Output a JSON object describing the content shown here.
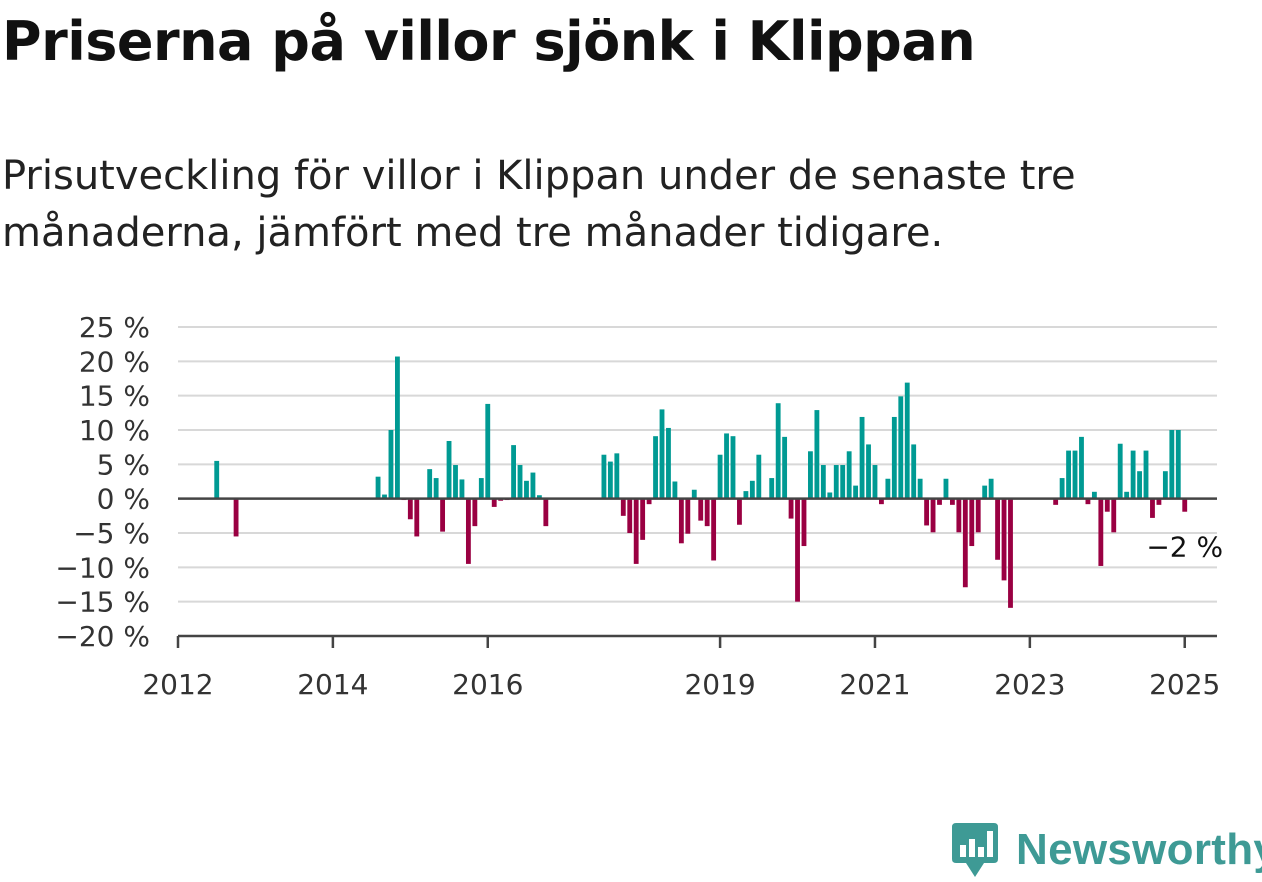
{
  "page": {
    "title": "Priserna på villor sjönk i Klippan",
    "subtitle": "Prisutveckling för villor i Klippan under de senaste tre månaderna, jämfört med tre månader tidigare.",
    "brand": "Newsworthy"
  },
  "colors": {
    "positive": "#009a93",
    "negative": "#9a0042",
    "grid": "#d8d8d8",
    "axis": "#444444",
    "brand": "#3e9a95"
  },
  "chart_data": {
    "type": "bar",
    "title": "Priserna på villor sjönk i Klippan",
    "subtitle": "Prisutveckling för villor i Klippan under de senaste tre månaderna, jämfört med tre månader tidigare.",
    "xlabel": "",
    "ylabel": "",
    "ylim": [
      -20,
      25
    ],
    "yticks": [
      25,
      20,
      15,
      10,
      5,
      0,
      -5,
      -10,
      -15,
      -20
    ],
    "ytick_labels": [
      "25 %",
      "20 %",
      "15 %",
      "10 %",
      "5 %",
      "0 %",
      "−5 %",
      "−10 %",
      "−15 %",
      "−20 %"
    ],
    "xlim": [
      "2012-01",
      "2025-06"
    ],
    "xticks": [
      "2012-01",
      "2014-01",
      "2016-01",
      "2019-01",
      "2021-01",
      "2023-01",
      "2025-01"
    ],
    "xtick_labels": [
      "2012",
      "2014",
      "2016",
      "2019",
      "2021",
      "2023",
      "2025"
    ],
    "grid": true,
    "annotation": {
      "x": "2025-01",
      "value": -2,
      "label": "−2 %"
    },
    "series": [
      {
        "x": [
          "2012-07",
          "2012-10",
          "2014-08",
          "2014-09",
          "2014-10",
          "2014-11",
          "2014-12",
          "2015-01",
          "2015-02",
          "2015-03",
          "2015-04",
          "2015-05",
          "2015-06",
          "2015-07",
          "2015-08",
          "2015-09",
          "2015-10",
          "2015-11",
          "2015-12",
          "2016-01",
          "2016-02",
          "2016-03",
          "2016-04",
          "2016-05",
          "2016-06",
          "2016-07",
          "2016-08",
          "2016-09",
          "2016-10",
          "2017-07",
          "2017-08",
          "2017-09",
          "2017-10",
          "2017-11",
          "2017-12",
          "2018-01",
          "2018-02",
          "2018-03",
          "2018-04",
          "2018-05",
          "2018-06",
          "2018-07",
          "2018-08",
          "2018-09",
          "2018-10",
          "2018-11",
          "2018-12",
          "2019-01",
          "2019-02",
          "2019-03",
          "2019-04",
          "2019-05",
          "2019-06",
          "2019-07",
          "2019-08",
          "2019-09",
          "2019-10",
          "2019-11",
          "2019-12",
          "2020-01",
          "2020-02",
          "2020-03",
          "2020-04",
          "2020-05",
          "2020-06",
          "2020-07",
          "2020-08",
          "2020-09",
          "2020-10",
          "2020-11",
          "2020-12",
          "2021-01",
          "2021-02",
          "2021-03",
          "2021-04",
          "2021-05",
          "2021-06",
          "2021-07",
          "2021-08",
          "2021-09",
          "2021-10",
          "2021-11",
          "2021-12",
          "2022-01",
          "2022-02",
          "2022-03",
          "2022-04",
          "2022-05",
          "2022-06",
          "2022-07",
          "2022-08",
          "2022-09",
          "2022-10",
          "2023-05",
          "2023-06",
          "2023-07",
          "2023-08",
          "2023-09",
          "2023-10",
          "2023-11",
          "2023-12",
          "2024-01",
          "2024-02",
          "2024-03",
          "2024-04",
          "2024-05",
          "2024-06",
          "2024-07",
          "2024-08",
          "2024-09",
          "2024-10",
          "2024-11",
          "2024-12",
          "2025-01"
        ],
        "values": [
          5.5,
          -5.5,
          3.2,
          0.6,
          10,
          20.7,
          -0.2,
          -3,
          -5.5,
          0.1,
          4.3,
          3,
          -4.8,
          8.4,
          4.9,
          2.8,
          -9.5,
          -4,
          3,
          13.8,
          -1.2,
          -0.3,
          -0.2,
          7.8,
          4.9,
          2.6,
          3.8,
          0.5,
          -4,
          6.4,
          5.4,
          6.6,
          -2.5,
          -5,
          -9.5,
          -6,
          -0.8,
          9.1,
          13,
          10.3,
          2.5,
          -6.5,
          -5.1,
          1.3,
          -3.2,
          -4,
          -9,
          6.4,
          9.5,
          9.1,
          -3.8,
          1.1,
          2.6,
          6.4,
          0.1,
          3,
          13.9,
          9,
          -2.9,
          -15,
          -6.9,
          6.9,
          12.9,
          4.9,
          0.9,
          4.9,
          4.9,
          6.9,
          1.9,
          11.9,
          7.9,
          4.9,
          -0.8,
          2.9,
          11.9,
          14.9,
          16.9,
          7.9,
          2.9,
          -3.9,
          -4.9,
          -0.9,
          2.9,
          -0.9,
          -4.9,
          -12.9,
          -6.9,
          -4.9,
          1.9,
          2.9,
          -8.9,
          -11.9,
          -15.9,
          -0.9,
          3,
          7,
          7,
          9,
          -0.8,
          1,
          -9.8,
          -1.9,
          -4.9,
          8,
          1,
          7,
          4,
          7,
          -2.8,
          -0.9,
          4,
          10,
          10,
          -1.9
        ]
      }
    ]
  }
}
